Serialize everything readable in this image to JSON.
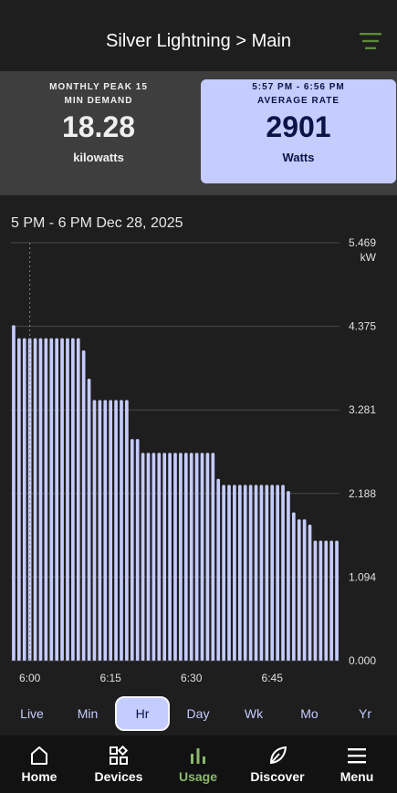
{
  "header": {
    "title": "Silver Lightning > Main",
    "filter_icon": "filter-lines-icon",
    "filter_color": "#5d8a3a"
  },
  "cards": {
    "left": {
      "caption_line1": "MONTHLY PEAK 15",
      "caption_line2": "MIN DEMAND",
      "value": "18.28",
      "unit": "kilowatts"
    },
    "right": {
      "time_range": "5:57 PM - 6:56 PM",
      "caption": "AVERAGE RATE",
      "value": "2901",
      "unit": "Watts"
    }
  },
  "chart": {
    "range_label": "5 PM - 6 PM Dec 28, 2025"
  },
  "chart_data": {
    "type": "bar",
    "y_unit": "kW",
    "ylim": [
      0,
      5.469
    ],
    "y_ticks": [
      "5.469",
      "4.375",
      "3.281",
      "2.188",
      "1.094",
      "0.000"
    ],
    "x_ticks": [
      "6:00",
      "6:15",
      "6:30",
      "6:45"
    ],
    "x_tick_minutes": [
      0,
      15,
      30,
      45
    ],
    "x_start_minute": -3,
    "values": [
      4.39,
      4.22,
      4.22,
      4.22,
      4.22,
      4.22,
      4.22,
      4.22,
      4.22,
      4.22,
      4.22,
      4.22,
      4.22,
      4.06,
      3.69,
      3.41,
      3.41,
      3.41,
      3.41,
      3.41,
      3.41,
      3.41,
      2.9,
      2.9,
      2.72,
      2.72,
      2.72,
      2.72,
      2.72,
      2.72,
      2.72,
      2.72,
      2.72,
      2.72,
      2.72,
      2.72,
      2.72,
      2.72,
      2.38,
      2.3,
      2.3,
      2.3,
      2.3,
      2.3,
      2.3,
      2.3,
      2.3,
      2.3,
      2.3,
      2.3,
      2.3,
      2.22,
      1.94,
      1.85,
      1.85,
      1.78,
      1.57,
      1.57,
      1.57,
      1.57,
      1.57
    ],
    "bar_color": "#c5ccff",
    "grid": true
  },
  "ranges": {
    "items": [
      {
        "label": "Live"
      },
      {
        "label": "Min"
      },
      {
        "label": "Hr"
      },
      {
        "label": "Day"
      },
      {
        "label": "Wk"
      },
      {
        "label": "Mo"
      },
      {
        "label": "Yr"
      }
    ],
    "selected": "Hr",
    "accent": "#c5ccff"
  },
  "nav": {
    "items": [
      {
        "label": "Home",
        "icon": "home-icon"
      },
      {
        "label": "Devices",
        "icon": "devices-icon"
      },
      {
        "label": "Usage",
        "icon": "usage-bars-icon"
      },
      {
        "label": "Discover",
        "icon": "leaf-icon"
      },
      {
        "label": "Menu",
        "icon": "hamburger-menu-icon"
      }
    ],
    "active": "Usage",
    "active_color": "#8cb86c"
  }
}
